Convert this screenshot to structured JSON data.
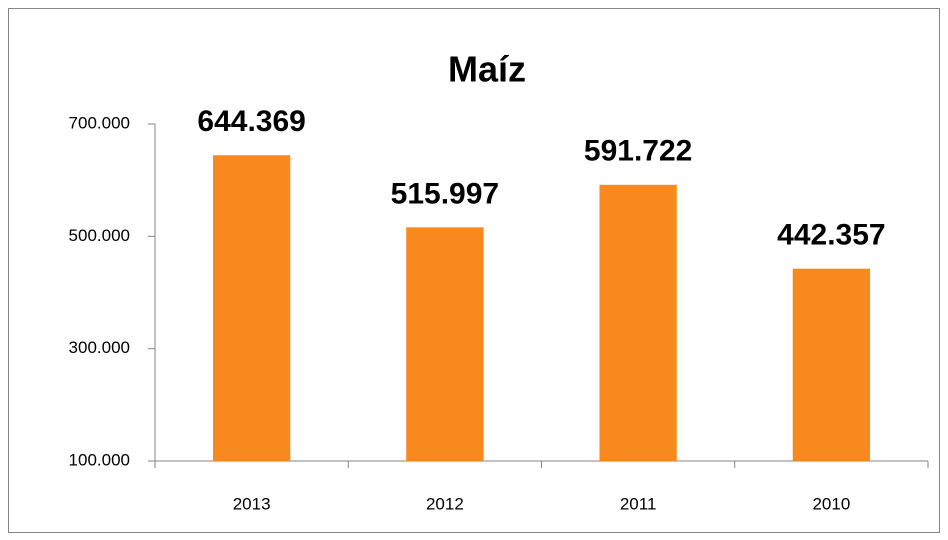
{
  "chart_data": {
    "type": "bar",
    "title": "Maíz",
    "categories": [
      "2013",
      "2012",
      "2011",
      "2010"
    ],
    "values": [
      644369,
      515997,
      591722,
      442357
    ],
    "value_labels": [
      "644.369",
      "515.997",
      "591.722",
      "442.357"
    ],
    "color": "#f7891f",
    "ylim": [
      100000,
      700000
    ],
    "yticks": [
      {
        "value": 100000,
        "label": "100.000"
      },
      {
        "value": 300000,
        "label": "300.000"
      },
      {
        "value": 500000,
        "label": "500.000"
      },
      {
        "value": 700000,
        "label": "700.000"
      }
    ],
    "grid": false
  }
}
